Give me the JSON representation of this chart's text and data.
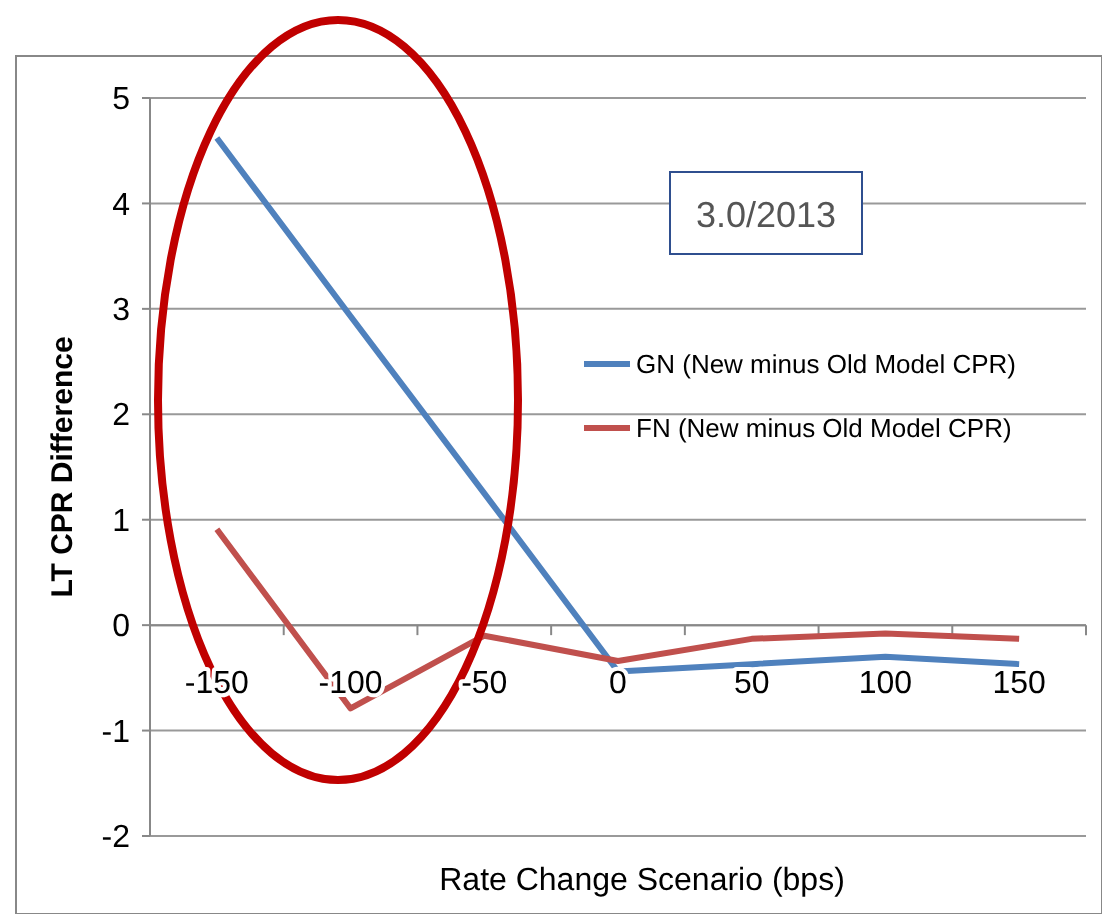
{
  "chart_data": {
    "type": "line",
    "xlabel": "Rate Change Scenario (bps)",
    "ylabel": "LT CPR Difference",
    "annotations": [
      "3.0/2013"
    ],
    "categories": [
      "-150",
      "-100",
      "-50",
      "0",
      "50",
      "100",
      "150"
    ],
    "series": [
      {
        "name": "GN (New minus Old Model CPR)",
        "color": "#4f81bd",
        "values": [
          4.62,
          2.93,
          1.25,
          -0.44,
          -0.37,
          -0.3,
          -0.37
        ]
      },
      {
        "name": "FN (New minus Old Model CPR)",
        "color": "#c0504d",
        "values": [
          0.91,
          -0.79,
          -0.1,
          -0.34,
          -0.13,
          -0.08,
          -0.13
        ]
      }
    ],
    "ylim": [
      -2,
      5
    ],
    "yticks": [
      -2,
      -1,
      0,
      1,
      2,
      3,
      4,
      5
    ],
    "grid": "y",
    "legend": "right",
    "marker": "none",
    "line_style": "solid"
  }
}
